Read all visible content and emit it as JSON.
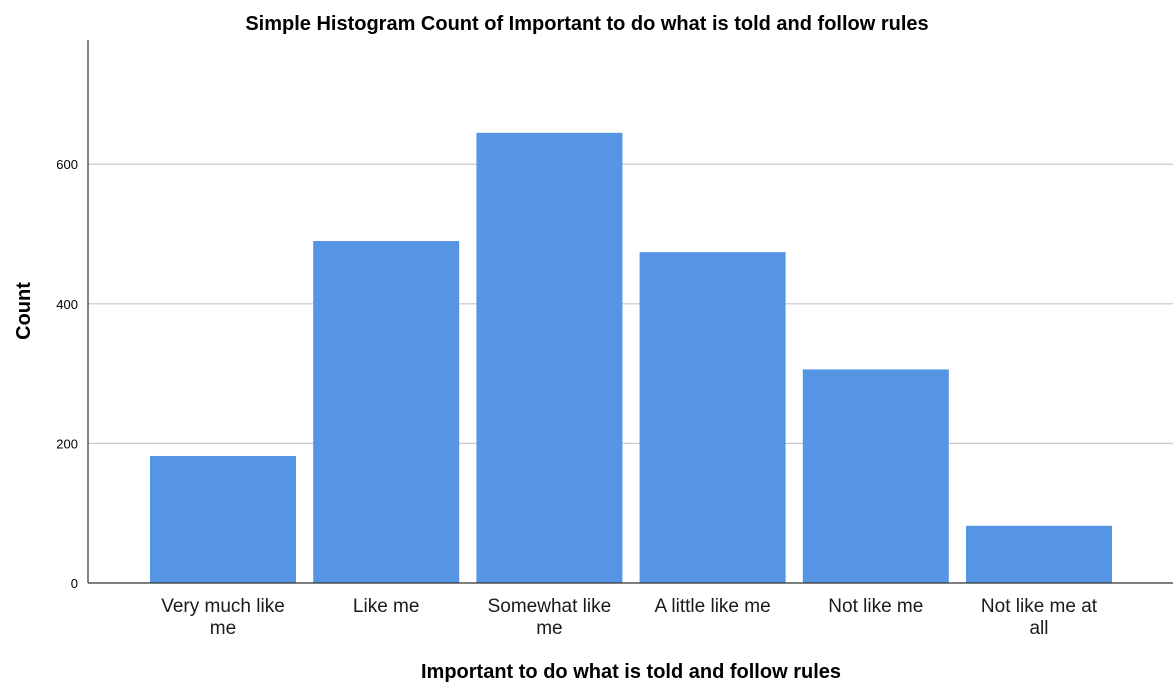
{
  "chart_data": {
    "type": "bar",
    "title": "Simple Histogram Count of Important to do what is told and follow rules",
    "xlabel": "Important to do what is told and follow rules",
    "ylabel": "Count",
    "categories": [
      [
        "Very much like",
        "me"
      ],
      [
        "Like me"
      ],
      [
        "Somewhat like",
        "me"
      ],
      [
        "A little like me"
      ],
      [
        "Not like me"
      ],
      [
        "Not like me at",
        "all"
      ]
    ],
    "values": [
      182,
      490,
      645,
      474,
      306,
      82
    ],
    "yticks": [
      0,
      200,
      400,
      600
    ],
    "ylim": [
      0,
      778
    ],
    "grid": true,
    "bar_color": "#5595e4",
    "grid_color": "#c8c8c8",
    "axis_color": "#333333"
  }
}
